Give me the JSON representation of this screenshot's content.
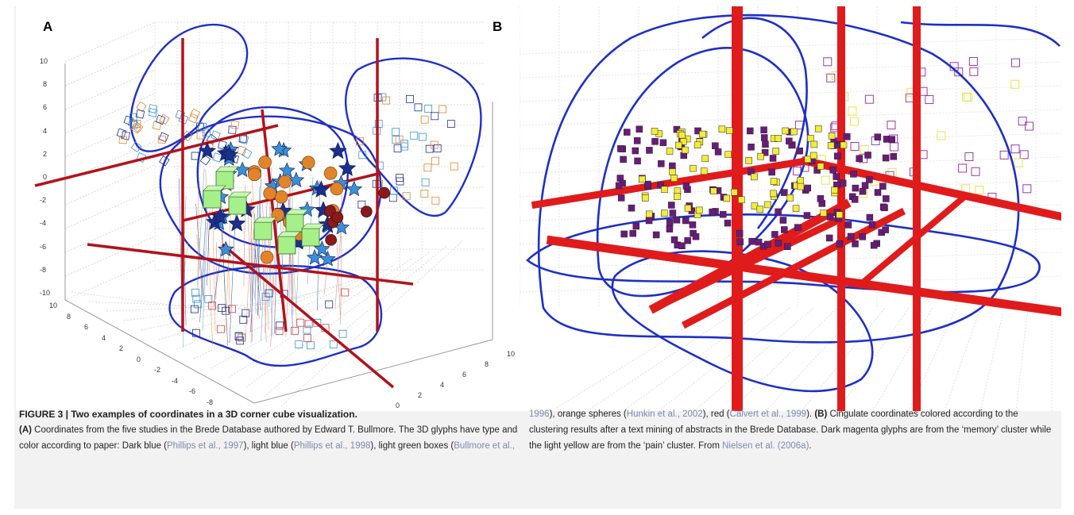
{
  "figure": {
    "panel_a_label": "A",
    "panel_b_label": "B",
    "axis_ticks_left": [
      "10",
      "8",
      "6",
      "4",
      "2",
      "0",
      "-2",
      "-4",
      "-6",
      "-8",
      "-10"
    ],
    "axis_ticks_front_left": [
      "10",
      "8",
      "6",
      "4",
      "2",
      "0",
      "-2",
      "-4",
      "-6",
      "-8"
    ],
    "axis_ticks_front_right": [
      "0",
      "2",
      "4",
      "6",
      "8",
      "10"
    ],
    "colors": {
      "contour": "#1d2fc8",
      "red_axes": "#e01b1b",
      "dark_red_axes": "#b3121b",
      "dark_blue_glyph": "#1c2f8a",
      "light_blue_glyph": "#3b8fd6",
      "light_green_box": "#a6f08a",
      "orange_sphere": "#e2842a",
      "red_glyph": "#8a1a1a",
      "magenta_glyph": "#6a1b7a",
      "yellow_glyph": "#f3ec3a"
    }
  },
  "caption": {
    "title": "FIGURE 3 | Two examples of coordinates in a 3D corner cube visualization.",
    "a_label": "(A)",
    "a_text_1": " Coordinates from the five studies in the Brede Database authored by Edward T. Bullmore. The 3D glyphs have type and color according to paper: Dark blue (",
    "ref_phillips_1997": "Phillips et al., 1997",
    "a_text_2": "), light blue (",
    "ref_phillips_1998": "Phillips et al., 1998",
    "a_text_3": "), light green boxes (",
    "ref_bullmore": "Bullmore et al.,",
    "ref_bullmore_year": "1996",
    "a_text_4": "), orange spheres (",
    "ref_hunkin": "Hunkin et al., 2002",
    "a_text_5": "), red (",
    "ref_calvert": "Calvert et al., 1999",
    "a_text_6": "). ",
    "b_label": "(B)",
    "b_text_1": " Cingulate coordinates colored according to the clustering results after a text mining of abstracts in the Brede Database. Dark magenta glyphs are from the ‘memory’ cluster while the light yellow are from the ‘pain’ cluster. From ",
    "ref_nielsen": "Nielsen et al. (2006a)",
    "b_text_2": "."
  }
}
